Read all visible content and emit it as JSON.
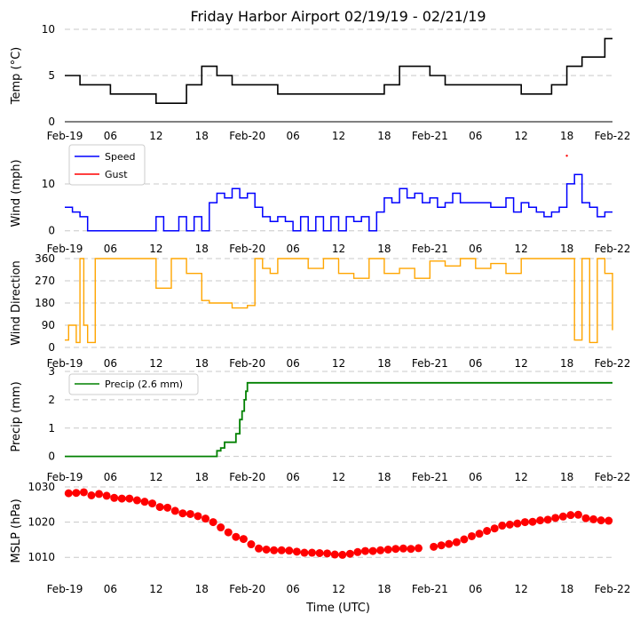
{
  "title": "Friday Harbor Airport 02/19/19 - 02/21/19",
  "xlabel": "Time (UTC)",
  "colors": {
    "temp": "#000000",
    "speed": "#0000ff",
    "gust": "#ff0000",
    "direction": "#ffa500",
    "precip": "#008000",
    "mslp": "#ff0000",
    "grid": "#c8c8c8"
  },
  "xaxis": {
    "range_hours": [
      0,
      72
    ],
    "ticks": [
      {
        "hour": 0,
        "label": "Feb-19"
      },
      {
        "hour": 6,
        "label": "06"
      },
      {
        "hour": 12,
        "label": "12"
      },
      {
        "hour": 18,
        "label": "18"
      },
      {
        "hour": 24,
        "label": "Feb-20"
      },
      {
        "hour": 30,
        "label": "06"
      },
      {
        "hour": 36,
        "label": "12"
      },
      {
        "hour": 42,
        "label": "18"
      },
      {
        "hour": 48,
        "label": "Feb-21"
      },
      {
        "hour": 54,
        "label": "06"
      },
      {
        "hour": 60,
        "label": "12"
      },
      {
        "hour": 66,
        "label": "18"
      },
      {
        "hour": 72,
        "label": "Feb-22"
      }
    ]
  },
  "chart_data": [
    {
      "type": "line",
      "id": "temp",
      "ylabel": "Temp (°C)",
      "ylim": [
        0,
        10
      ],
      "yticks": [
        "0",
        "5",
        "10"
      ],
      "ytick_values": [
        0,
        5,
        10
      ],
      "grid": true,
      "x_hours": [
        0,
        1,
        2,
        4,
        6,
        8,
        10,
        12,
        14,
        16,
        18,
        19,
        20,
        22,
        24,
        26,
        28,
        30,
        32,
        34,
        36,
        38,
        40,
        42,
        44,
        46,
        48,
        50,
        52,
        54,
        56,
        58,
        60,
        62,
        64,
        66,
        68,
        70,
        71,
        72
      ],
      "values": [
        5,
        5,
        4,
        4,
        3,
        3,
        3,
        2,
        2,
        4,
        6,
        6,
        5,
        4,
        4,
        4,
        3,
        3,
        3,
        3,
        3,
        3,
        3,
        4,
        6,
        6,
        5,
        4,
        4,
        4,
        4,
        4,
        3,
        3,
        4,
        6,
        7,
        7,
        9,
        9
      ]
    },
    {
      "type": "line",
      "id": "wind",
      "ylabel": "Wind (mph)",
      "ylim": [
        -1,
        17
      ],
      "yticks": [
        "0",
        "10"
      ],
      "ytick_values": [
        0,
        10
      ],
      "grid": true,
      "legend": {
        "placement": "top-left",
        "entries": [
          "Speed",
          "Gust"
        ]
      },
      "series": [
        {
          "name": "Speed",
          "x_hours": [
            0,
            1,
            2,
            3,
            4,
            5,
            6,
            7,
            8,
            9,
            10,
            11,
            12,
            13,
            14,
            15,
            16,
            17,
            18,
            19,
            20,
            21,
            22,
            23,
            24,
            25,
            26,
            27,
            28,
            29,
            30,
            31,
            32,
            33,
            34,
            35,
            36,
            37,
            38,
            39,
            40,
            41,
            42,
            43,
            44,
            45,
            46,
            47,
            48,
            49,
            50,
            51,
            52,
            53,
            54,
            55,
            56,
            57,
            58,
            59,
            60,
            61,
            62,
            63,
            64,
            65,
            66,
            67,
            68,
            69,
            70,
            71,
            72
          ],
          "values": [
            5,
            4,
            3,
            0,
            0,
            0,
            0,
            0,
            0,
            0,
            0,
            0,
            3,
            0,
            0,
            3,
            0,
            3,
            0,
            6,
            8,
            7,
            9,
            7,
            8,
            5,
            3,
            2,
            3,
            2,
            0,
            3,
            0,
            3,
            0,
            3,
            0,
            3,
            2,
            3,
            0,
            4,
            7,
            6,
            9,
            7,
            8,
            6,
            7,
            5,
            6,
            8,
            6,
            6,
            6,
            6,
            5,
            5,
            7,
            4,
            6,
            5,
            4,
            3,
            4,
            5,
            10,
            12,
            6,
            5,
            3,
            4,
            4
          ]
        },
        {
          "name": "Gust",
          "x_hours": [
            66
          ],
          "values": [
            16
          ]
        }
      ]
    },
    {
      "type": "line",
      "id": "direction",
      "ylabel": "Wind Direction",
      "ylim": [
        0,
        360
      ],
      "yticks": [
        "0",
        "90",
        "180",
        "270",
        "360"
      ],
      "ytick_values": [
        0,
        90,
        180,
        270,
        360
      ],
      "grid": true,
      "x_hours": [
        0,
        0.5,
        1,
        1.5,
        2,
        2.5,
        3,
        4,
        6,
        8,
        10,
        12,
        14,
        16,
        18,
        19,
        20,
        22,
        24,
        25,
        26,
        27,
        28,
        30,
        32,
        34,
        36,
        38,
        40,
        42,
        44,
        46,
        48,
        50,
        52,
        54,
        56,
        58,
        60,
        62,
        64,
        66,
        67,
        68,
        69,
        70,
        71,
        72
      ],
      "values": [
        30,
        90,
        90,
        20,
        360,
        90,
        20,
        360,
        360,
        360,
        360,
        240,
        360,
        300,
        190,
        180,
        180,
        160,
        170,
        360,
        320,
        300,
        360,
        360,
        320,
        360,
        300,
        280,
        360,
        300,
        320,
        280,
        350,
        330,
        360,
        320,
        340,
        300,
        360,
        360,
        360,
        360,
        30,
        360,
        20,
        360,
        300,
        70
      ]
    },
    {
      "type": "line",
      "id": "precip",
      "ylabel": "Precip (mm)",
      "ylim": [
        -0.2,
        3
      ],
      "yticks": [
        "0",
        "1",
        "2",
        "3"
      ],
      "ytick_values": [
        0,
        1,
        2,
        3
      ],
      "grid": true,
      "legend": {
        "placement": "top-left",
        "entries": [
          "Precip (2.6 mm)"
        ]
      },
      "x_hours": [
        0,
        19.8,
        20,
        20.5,
        21,
        22,
        22.5,
        23,
        23.3,
        23.6,
        23.8,
        24,
        72
      ],
      "values": [
        0,
        0,
        0.2,
        0.3,
        0.5,
        0.5,
        0.8,
        1.3,
        1.6,
        2.0,
        2.3,
        2.6,
        2.6
      ]
    },
    {
      "type": "scatter",
      "id": "mslp",
      "ylabel": "MSLP (hPa)",
      "ylim": [
        1005,
        1030
      ],
      "yticks": [
        "1010",
        "1020",
        "1030"
      ],
      "ytick_values": [
        1010,
        1020,
        1030
      ],
      "grid": true,
      "x_hours": [
        0.5,
        1.5,
        2.5,
        3.5,
        4.5,
        5.5,
        6.5,
        7.5,
        8.5,
        9.5,
        10.5,
        11.5,
        12.5,
        13.5,
        14.5,
        15.5,
        16.5,
        17.5,
        18.5,
        19.5,
        20.5,
        21.5,
        22.5,
        23.5,
        24.5,
        25.5,
        26.5,
        27.5,
        28.5,
        29.5,
        30.5,
        31.5,
        32.5,
        33.5,
        34.5,
        35.5,
        36.5,
        37.5,
        38.5,
        39.5,
        40.5,
        41.5,
        42.5,
        43.5,
        44.5,
        45.5,
        46.5,
        48.5,
        49.5,
        50.5,
        51.5,
        52.5,
        53.5,
        54.5,
        55.5,
        56.5,
        57.5,
        58.5,
        59.5,
        60.5,
        61.5,
        62.5,
        63.5,
        64.5,
        65.5,
        66.5,
        67.5,
        68.5,
        69.5,
        70.5,
        71.5
      ],
      "values": [
        1028.2,
        1028.3,
        1028.5,
        1027.6,
        1028.0,
        1027.5,
        1026.9,
        1026.7,
        1026.7,
        1026.2,
        1025.8,
        1025.3,
        1024.3,
        1024.1,
        1023.2,
        1022.5,
        1022.3,
        1021.7,
        1021.0,
        1020.0,
        1018.5,
        1017.1,
        1015.8,
        1015.2,
        1013.7,
        1012.5,
        1012.2,
        1012.0,
        1012.0,
        1011.9,
        1011.6,
        1011.3,
        1011.3,
        1011.2,
        1011.1,
        1010.8,
        1010.7,
        1011.0,
        1011.5,
        1011.8,
        1011.8,
        1012.0,
        1012.2,
        1012.4,
        1012.5,
        1012.4,
        1012.6,
        1013.0,
        1013.4,
        1013.8,
        1014.3,
        1015.1,
        1016.0,
        1016.7,
        1017.5,
        1018.2,
        1019.0,
        1019.3,
        1019.6,
        1020.0,
        1020.1,
        1020.5,
        1020.7,
        1021.2,
        1021.6,
        1022.0,
        1022.1,
        1021.1,
        1020.8,
        1020.5,
        1020.4
      ]
    }
  ]
}
